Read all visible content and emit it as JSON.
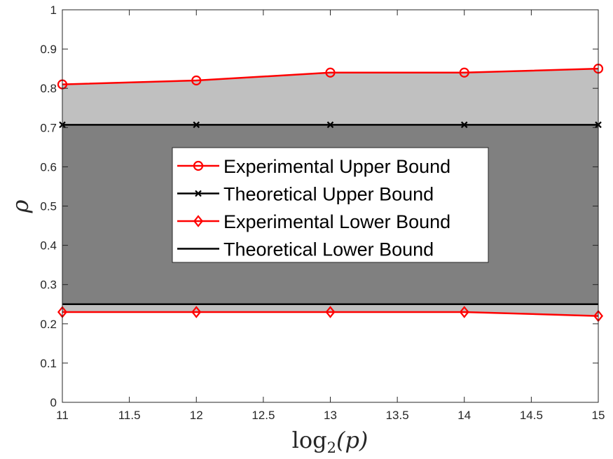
{
  "chart_data": {
    "type": "line",
    "x": [
      11,
      12,
      13,
      14,
      15
    ],
    "xlabel": "log",
    "xlabel_sub": "2",
    "xlabel_arg": "(p)",
    "ylabel": "ρ",
    "xlim": [
      11,
      15
    ],
    "ylim": [
      0,
      1
    ],
    "x_ticks": [
      "11",
      "11.5",
      "12",
      "12.5",
      "13",
      "13.5",
      "14",
      "14.5",
      "15"
    ],
    "y_ticks": [
      "0",
      "0.1",
      "0.2",
      "0.3",
      "0.4",
      "0.5",
      "0.6",
      "0.7",
      "0.8",
      "0.9",
      "1"
    ],
    "grid": false,
    "legend_position": "center",
    "series": [
      {
        "name": "Experimental Upper Bound",
        "values": [
          0.81,
          0.82,
          0.84,
          0.84,
          0.85
        ],
        "color": "#ff0000",
        "marker": "circle"
      },
      {
        "name": "Theoretical Upper Bound",
        "values": [
          0.7071,
          0.7071,
          0.7071,
          0.7071,
          0.7071
        ],
        "color": "#000000",
        "marker": "x"
      },
      {
        "name": "Experimental Lower Bound",
        "values": [
          0.23,
          0.23,
          0.23,
          0.23,
          0.22
        ],
        "color": "#ff0000",
        "marker": "diamond"
      },
      {
        "name": "Theoretical Lower Bound",
        "values": [
          0.25,
          0.25,
          0.25,
          0.25,
          0.25
        ],
        "color": "#000000",
        "marker": "none"
      }
    ],
    "fills": [
      {
        "between": [
          "Experimental Lower Bound",
          "Experimental Upper Bound"
        ],
        "color": "#c0c0c0"
      },
      {
        "between": [
          "Theoretical Lower Bound",
          "Theoretical Upper Bound"
        ],
        "color": "#808080"
      }
    ]
  }
}
